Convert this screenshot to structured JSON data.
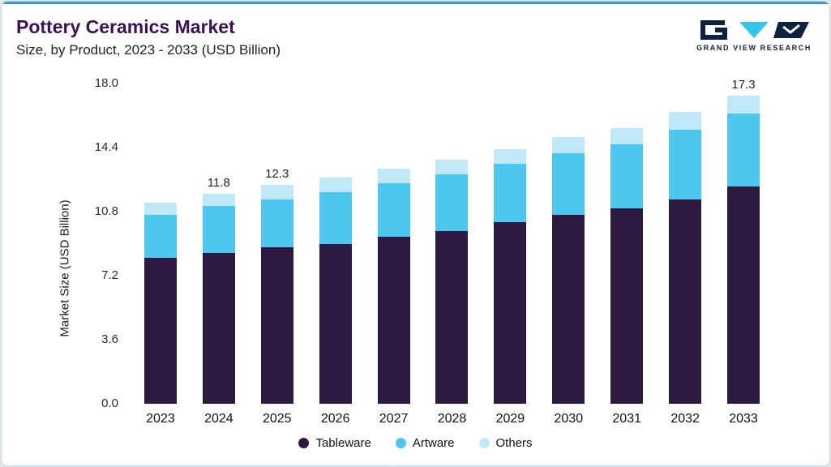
{
  "header": {
    "title": "Pottery Ceramics Market",
    "subtitle": "Size, by Product, 2023 - 2033 (USD Billion)",
    "logo_text": "GRAND VIEW RESEARCH"
  },
  "colors": {
    "topline": "#2e9bd6",
    "title": "#3c1053",
    "tableware": "#2e1a40",
    "artware": "#4dc6f0",
    "others": "#bfe9f9"
  },
  "chart_data": {
    "type": "bar",
    "stacked": true,
    "title": "Pottery Ceramics Market",
    "subtitle": "Size, by Product, 2023 - 2033 (USD Billion)",
    "xlabel": "",
    "ylabel": "Market Size (USD Billion)",
    "ylim": [
      0,
      18
    ],
    "yticks": [
      0,
      3.6,
      7.2,
      10.8,
      14.4,
      18
    ],
    "ytick_labels": [
      "0.0",
      "3.6",
      "7.2",
      "10.8",
      "14.4",
      "18.0"
    ],
    "categories": [
      "2023",
      "2024",
      "2025",
      "2026",
      "2027",
      "2028",
      "2029",
      "2030",
      "2031",
      "2032",
      "2033"
    ],
    "series": [
      {
        "name": "Tableware",
        "color": "#2e1a40",
        "values": [
          8.2,
          8.5,
          8.8,
          9.0,
          9.4,
          9.7,
          10.2,
          10.6,
          11.0,
          11.5,
          12.2
        ]
      },
      {
        "name": "Artware",
        "color": "#4dc6f0",
        "values": [
          2.4,
          2.6,
          2.7,
          2.9,
          3.0,
          3.2,
          3.3,
          3.5,
          3.6,
          3.9,
          4.1
        ]
      },
      {
        "name": "Others",
        "color": "#bfe9f9",
        "values": [
          0.7,
          0.7,
          0.8,
          0.8,
          0.8,
          0.8,
          0.8,
          0.9,
          0.9,
          1.0,
          1.0
        ]
      }
    ],
    "totals": [
      11.3,
      11.8,
      12.3,
      12.7,
      13.2,
      13.7,
      14.3,
      15.0,
      15.5,
      16.4,
      17.3
    ],
    "total_labels": [
      "",
      "11.8",
      "12.3",
      "",
      "",
      "",
      "",
      "",
      "",
      "",
      "17.3"
    ],
    "grid": false,
    "legend_position": "bottom"
  }
}
